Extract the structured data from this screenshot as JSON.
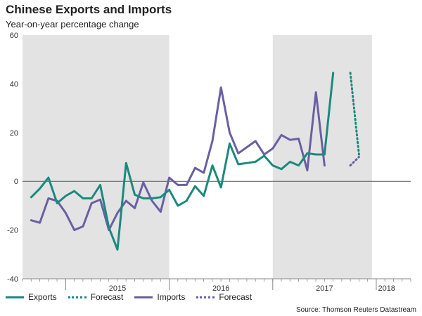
{
  "title": "Chinese Exports and Imports",
  "subtitle": "Year-on-year percentage change",
  "source": "Thomson Reuters Datastream",
  "source_prefix": "Source:",
  "colors": {
    "exports": "#1a8a7d",
    "imports": "#6b5fa3",
    "shade": "#e3e3e3",
    "zero": "#555555"
  },
  "legend": [
    {
      "label": "Exports",
      "color": "#1a8a7d",
      "style": "solid"
    },
    {
      "label": "Forecast",
      "color": "#1a8a7d",
      "style": "dotted"
    },
    {
      "label": "Imports",
      "color": "#6b5fa3",
      "style": "solid"
    },
    {
      "label": "Forecast",
      "color": "#6b5fa3",
      "style": "dotted"
    }
  ],
  "chart_data": {
    "type": "line",
    "ylim": [
      -40,
      60
    ],
    "yticks": [
      -40,
      -20,
      0,
      20,
      40,
      60
    ],
    "xlim": [
      2014.583,
      2018.333
    ],
    "year_labels": [
      {
        "label": "2015",
        "x": 2015.5
      },
      {
        "label": "2016",
        "x": 2016.5
      },
      {
        "label": "2017",
        "x": 2017.5
      },
      {
        "label": "2018",
        "x": 2018.1
      }
    ],
    "shaded_years": [
      [
        2014.583,
        2016.0
      ],
      [
        2017.0,
        2017.958
      ]
    ],
    "series": [
      {
        "name": "Exports",
        "x": [
          2014.667,
          2014.75,
          2014.833,
          2014.917,
          2015.0,
          2015.083,
          2015.167,
          2015.25,
          2015.333,
          2015.417,
          2015.5,
          2015.583,
          2015.667,
          2015.75,
          2015.833,
          2015.917,
          2016.0,
          2016.083,
          2016.167,
          2016.25,
          2016.333,
          2016.417,
          2016.5,
          2016.583,
          2016.667,
          2016.75,
          2016.833,
          2016.917,
          2017.0,
          2017.083,
          2017.167,
          2017.25,
          2017.333,
          2017.417,
          2017.5,
          2017.583,
          2017.667,
          2017.75,
          2017.833,
          2017.917,
          2018.0,
          2018.083
        ],
        "values": [
          -6.5,
          -3,
          1.5,
          -9,
          -6,
          -3.5,
          -7,
          -7,
          -1.5,
          -19,
          -28,
          7.5,
          -5.5,
          -7,
          -6.5,
          -6.5,
          -3.5,
          -10,
          -8,
          -2,
          -6,
          6.5,
          -2.5,
          15.5,
          7,
          7.5,
          8,
          10.5,
          6.5,
          5,
          8,
          6.5,
          11.5,
          11,
          11,
          44.5,
          0,
          0,
          0,
          0,
          0,
          0
        ]
      },
      {
        "name": "Imports",
        "x": [],
        "values": []
      }
    ]
  }
}
